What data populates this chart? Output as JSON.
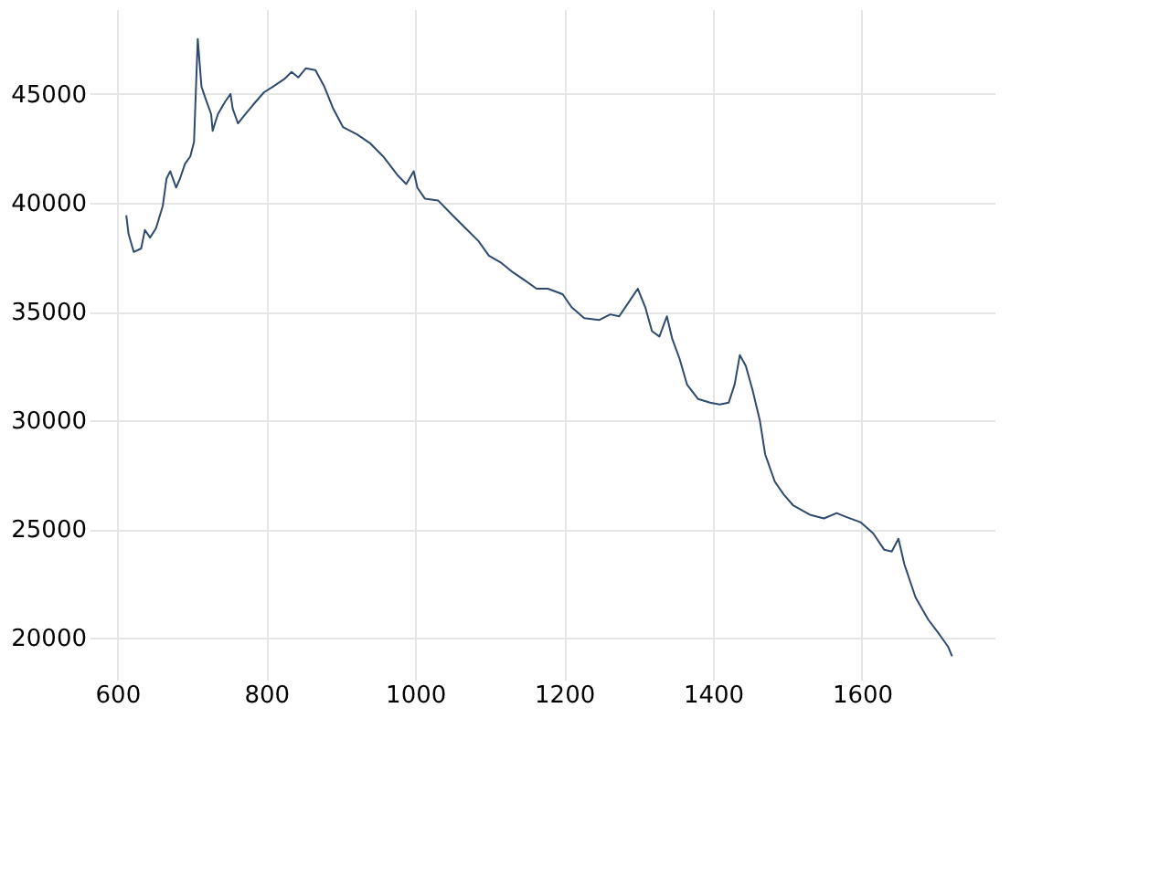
{
  "chart_data": {
    "type": "line",
    "xlim": [
      575,
      1778
    ],
    "ylim": [
      18500,
      48900
    ],
    "xticks": [
      600,
      800,
      1000,
      1200,
      1400,
      1600
    ],
    "yticks": [
      20000,
      25000,
      30000,
      35000,
      40000,
      45000
    ],
    "grid": true,
    "legend": false,
    "marker": "none",
    "line_style": "solid",
    "series": [
      {
        "color": "#2e4a6e",
        "x": [
          612,
          615,
          622,
          632,
          637,
          644,
          652,
          661,
          666,
          671,
          679,
          684,
          691,
          698,
          703,
          708,
          713,
          718,
          726,
          728,
          735,
          745,
          752,
          755,
          762,
          770,
          782,
          797,
          809,
          824,
          834,
          843,
          853,
          866,
          878,
          890,
          903,
          922,
          940,
          957,
          976,
          988,
          998,
          1003,
          1013,
          1031,
          1050,
          1070,
          1085,
          1099,
          1116,
          1131,
          1149,
          1163,
          1178,
          1198,
          1210,
          1227,
          1247,
          1262,
          1274,
          1289,
          1299,
          1309,
          1318,
          1328,
          1338,
          1345,
          1355,
          1365,
          1380,
          1396,
          1409,
          1421,
          1429,
          1436,
          1444,
          1453,
          1463,
          1470,
          1483,
          1495,
          1508,
          1530,
          1549,
          1566,
          1578,
          1598,
          1615,
          1630,
          1640,
          1649,
          1657,
          1672,
          1689,
          1704,
          1716,
          1721
        ],
        "values": [
          39430,
          38580,
          37740,
          37900,
          38750,
          38400,
          38830,
          39850,
          41100,
          41450,
          40700,
          41100,
          41800,
          42130,
          42800,
          47530,
          45340,
          44830,
          44070,
          43310,
          44070,
          44660,
          45000,
          44320,
          43650,
          43990,
          44490,
          45080,
          45340,
          45680,
          46010,
          45760,
          46180,
          46100,
          45340,
          44320,
          43480,
          43140,
          42720,
          42130,
          41280,
          40860,
          41450,
          40690,
          40190,
          40100,
          39430,
          38750,
          38240,
          37570,
          37230,
          36810,
          36390,
          36050,
          36050,
          35800,
          35200,
          34700,
          34610,
          34870,
          34780,
          35540,
          36050,
          35200,
          34100,
          33850,
          34780,
          33770,
          32840,
          31650,
          30980,
          30810,
          30730,
          30810,
          31650,
          33000,
          32500,
          31400,
          29970,
          28440,
          27180,
          26590,
          26080,
          25660,
          25490,
          25740,
          25570,
          25320,
          24810,
          24050,
          23970,
          24560,
          23380,
          21860,
          20840,
          20160,
          19580,
          19160
        ]
      }
    ]
  }
}
